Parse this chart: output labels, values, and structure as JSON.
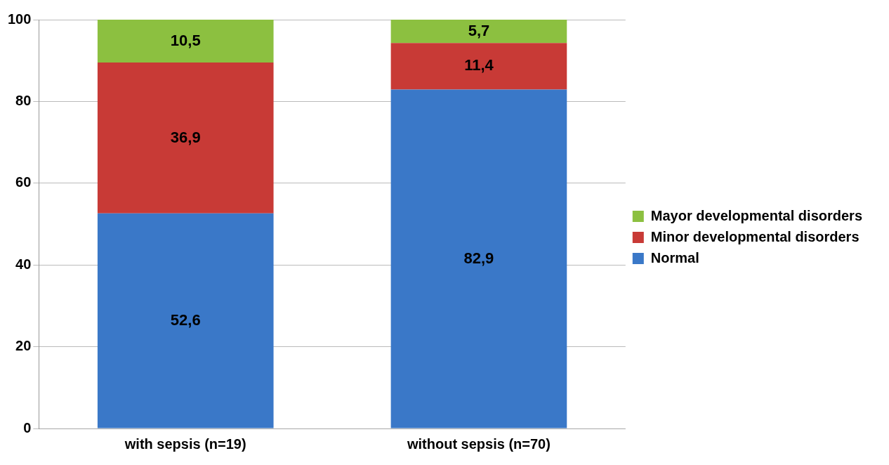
{
  "chart_data": {
    "type": "bar",
    "stacked": true,
    "categories": [
      "with sepsis (n=19)",
      "without sepsis (n=70)"
    ],
    "series": [
      {
        "name": "Normal",
        "color": "#3a78c8",
        "values": [
          52.6,
          82.9
        ],
        "value_labels": [
          "52,6",
          "82,9"
        ]
      },
      {
        "name": "Minor developmental disorders",
        "color": "#c83a36",
        "values": [
          36.9,
          11.4
        ],
        "value_labels": [
          "36,9",
          "11,4"
        ]
      },
      {
        "name": "Mayor developmental disorders",
        "color": "#8cc040",
        "values": [
          10.5,
          5.7
        ],
        "value_labels": [
          "10,5",
          "5,7"
        ]
      }
    ],
    "ylim": [
      0,
      100
    ],
    "yticks": [
      0,
      20,
      40,
      60,
      80,
      100
    ],
    "grid": "y",
    "legend": "right"
  }
}
